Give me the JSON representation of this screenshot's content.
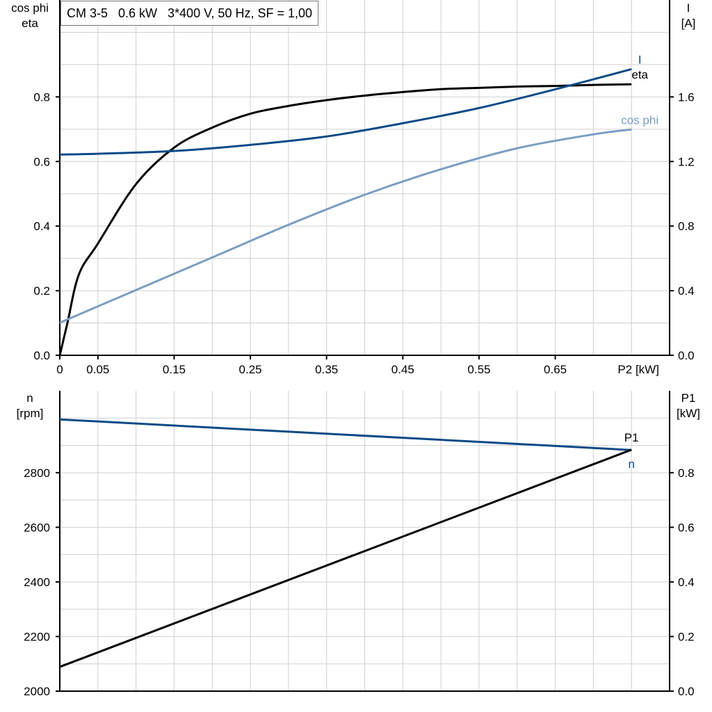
{
  "title": "CM 3-5   0.6 kW   3*400 V, 50 Hz, SF = 1,00",
  "colors": {
    "I": "#0b4a86",
    "eta": "#000000",
    "cos_phi": "#7a9ec2",
    "n": "#0b4a86",
    "P1": "#000000",
    "grid": "#d0d0d0"
  },
  "chart_data": [
    {
      "type": "line",
      "title": "CM 3-5   0.6 kW   3*400 V, 50 Hz, SF = 1,00",
      "xlabel": "P2 [kW]",
      "ylabel_left": [
        "cos phi",
        "eta"
      ],
      "ylabel_right": [
        "I",
        "[A]"
      ],
      "xlim": [
        0,
        0.8
      ],
      "ylim_left": [
        0,
        1.1
      ],
      "ylim_right": [
        0,
        2.2
      ],
      "x_ticks": [
        "0",
        "0.05",
        "0.15",
        "0.25",
        "0.35",
        "0.45",
        "0.55",
        "0.65"
      ],
      "x_tick_values": [
        0,
        0.05,
        0.15,
        0.25,
        0.35,
        0.45,
        0.55,
        0.65
      ],
      "y_ticks_left": [
        "0.0",
        "0.2",
        "0.4",
        "0.6",
        "0.8"
      ],
      "y_ticks_right": [
        "0.0",
        "0.4",
        "0.8",
        "1.2",
        "1.6"
      ],
      "grid": true,
      "series": [
        {
          "name": "eta",
          "axis": "left",
          "color_key": "eta",
          "x": [
            0,
            0.01,
            0.025,
            0.05,
            0.1,
            0.15,
            0.2,
            0.25,
            0.3,
            0.35,
            0.4,
            0.45,
            0.5,
            0.55,
            0.6,
            0.65,
            0.7,
            0.75
          ],
          "y": [
            0,
            0.1,
            0.25,
            0.346,
            0.53,
            0.643,
            0.705,
            0.748,
            0.772,
            0.79,
            0.804,
            0.815,
            0.824,
            0.828,
            0.832,
            0.834,
            0.837,
            0.839
          ]
        },
        {
          "name": "I",
          "axis": "right",
          "color_key": "I",
          "x": [
            0,
            0.05,
            0.15,
            0.25,
            0.35,
            0.45,
            0.55,
            0.65,
            0.75
          ],
          "y": [
            1.243,
            1.248,
            1.265,
            1.303,
            1.355,
            1.437,
            1.531,
            1.647,
            1.772
          ]
        },
        {
          "name": "cos phi",
          "axis": "left",
          "color_key": "cos_phi",
          "x": [
            0,
            0.1,
            0.2,
            0.3,
            0.4,
            0.5,
            0.6,
            0.7,
            0.75
          ],
          "y": [
            0.101,
            0.202,
            0.303,
            0.404,
            0.497,
            0.576,
            0.641,
            0.684,
            0.699
          ]
        }
      ]
    },
    {
      "type": "line",
      "ylabel_left": [
        "n",
        "[rpm]"
      ],
      "ylabel_right": [
        "P1",
        "[kW]"
      ],
      "xlim": [
        0,
        0.8
      ],
      "ylim_left": [
        2000,
        3100
      ],
      "ylim_right": [
        0,
        1.1
      ],
      "y_ticks_left": [
        "2000",
        "2200",
        "2400",
        "2600",
        "2800"
      ],
      "y_ticks_right": [
        "0.0",
        "0.2",
        "0.4",
        "0.6",
        "0.8"
      ],
      "grid": true,
      "series": [
        {
          "name": "n",
          "axis": "left",
          "color_key": "n",
          "x": [
            0,
            0.75
          ],
          "y": [
            2995,
            2883
          ]
        },
        {
          "name": "P1",
          "axis": "right",
          "color_key": "P1",
          "x": [
            0,
            0.75
          ],
          "y": [
            0.089,
            0.884
          ]
        }
      ]
    }
  ]
}
